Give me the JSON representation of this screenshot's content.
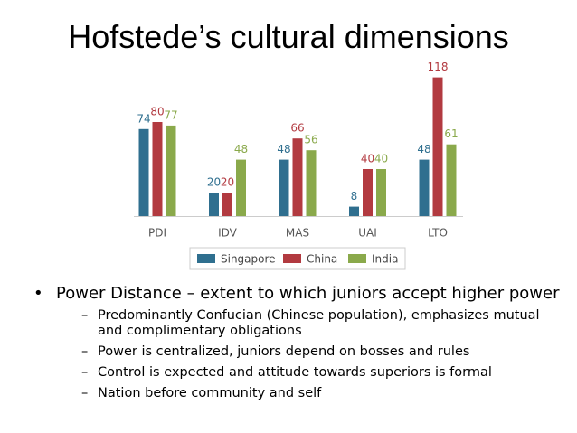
{
  "title": "Hofstede’s cultural dimensions",
  "chart_data": {
    "type": "bar",
    "categories": [
      "PDI",
      "IDV",
      "MAS",
      "UAI",
      "LTO"
    ],
    "series": [
      {
        "name": "Singapore",
        "color": "#2f6f8f",
        "values": [
          74,
          20,
          48,
          8,
          48
        ]
      },
      {
        "name": "China",
        "color": "#b23a40",
        "values": [
          80,
          20,
          66,
          40,
          118
        ]
      },
      {
        "name": "India",
        "color": "#8aa94b",
        "values": [
          77,
          48,
          56,
          40,
          61
        ]
      }
    ]
  },
  "bullets": [
    {
      "text": "Power Distance – extent to which juniors accept higher power",
      "subbullets": [
        "Predominantly Confucian (Chinese population), emphasizes mutual and complimentary obligations",
        "Power is centralized, juniors depend on bosses and rules",
        "Control is expected and attitude towards superiors is formal",
        "Nation before community and self"
      ]
    }
  ]
}
